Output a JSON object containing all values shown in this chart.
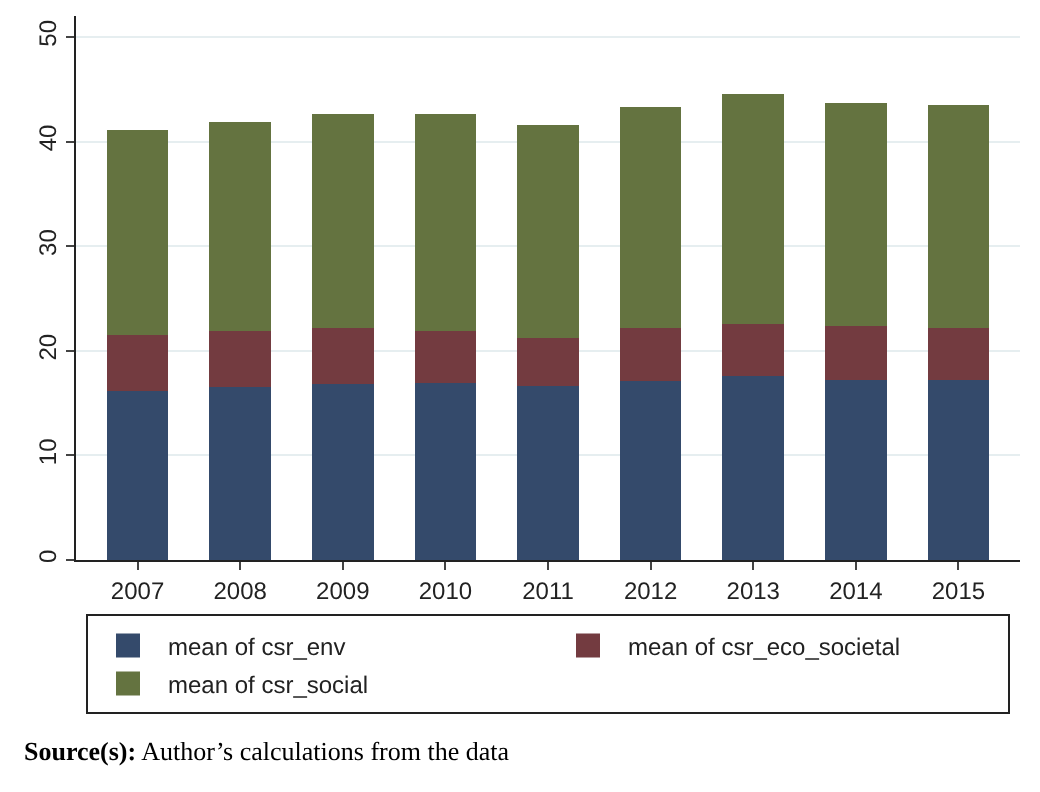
{
  "chart_data": {
    "type": "bar",
    "stacked": true,
    "categories": [
      "2007",
      "2008",
      "2009",
      "2010",
      "2011",
      "2012",
      "2013",
      "2014",
      "2015"
    ],
    "series": [
      {
        "name": "mean of csr_env",
        "color": "#344a6b",
        "values": [
          16.2,
          16.5,
          16.8,
          16.9,
          16.6,
          17.1,
          17.6,
          17.2,
          17.2
        ]
      },
      {
        "name": "mean of csr_eco_societal",
        "color": "#733b40",
        "values": [
          5.3,
          5.4,
          5.4,
          5.0,
          4.6,
          5.1,
          5.0,
          5.2,
          5.0
        ]
      },
      {
        "name": "mean of csr_social",
        "color": "#647340",
        "values": [
          19.6,
          20.0,
          20.4,
          20.7,
          20.4,
          21.1,
          21.9,
          21.3,
          21.3
        ]
      }
    ],
    "ylim": [
      0,
      52
    ],
    "yticks": [
      0,
      10,
      20,
      30,
      40,
      50
    ],
    "grid": "y",
    "legend": "bottom",
    "annotations": [
      "Source(s): Author’s calculations from the data"
    ]
  }
}
